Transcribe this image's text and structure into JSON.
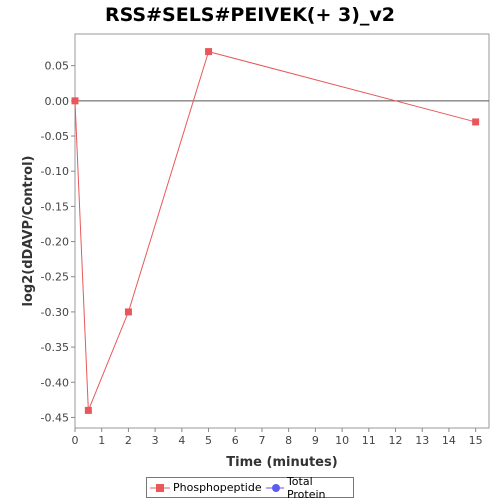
{
  "chart_data": {
    "type": "line",
    "title": "RSS#SELS#PEIVEK(+ 3)_v2",
    "xlabel": "Time (minutes)",
    "ylabel": "log2(dDAVP/Control)",
    "xlim": [
      0,
      15.5
    ],
    "ylim": [
      -0.465,
      0.095
    ],
    "x_ticks": [
      0,
      1,
      2,
      3,
      4,
      5,
      6,
      7,
      8,
      9,
      10,
      11,
      12,
      13,
      14,
      15
    ],
    "y_ticks": [
      0.05,
      0.0,
      -0.05,
      -0.1,
      -0.15,
      -0.2,
      -0.25,
      -0.3,
      -0.35,
      -0.4,
      -0.45
    ],
    "y_tick_labels": [
      "0.05",
      "0.00",
      "-0.05",
      "-0.10",
      "-0.15",
      "-0.20",
      "-0.25",
      "-0.30",
      "-0.35",
      "-0.40",
      "-0.45"
    ],
    "zero_line": 0.0,
    "grid": false,
    "legend_position": "bottom-center",
    "series": [
      {
        "name": "Phosphopeptide",
        "color": "#e8585a",
        "marker": "square",
        "x": [
          0,
          0.5,
          2,
          5,
          15
        ],
        "y": [
          0.0,
          -0.44,
          -0.3,
          0.07,
          -0.03
        ]
      },
      {
        "name": "Total Protein",
        "color": "#5b5bf0",
        "marker": "circle",
        "x": [],
        "y": []
      }
    ]
  }
}
